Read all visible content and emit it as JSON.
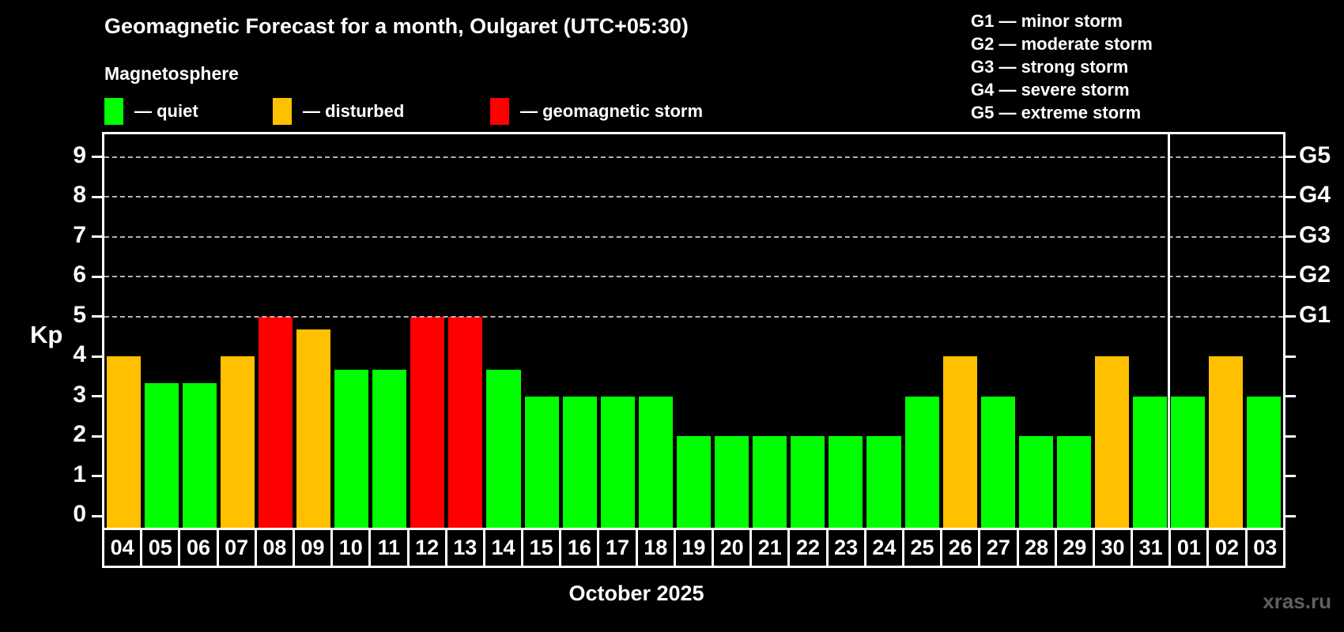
{
  "header": {
    "title": "Geomagnetic Forecast for a month, Oulgaret (UTC+05:30)",
    "subtitle": "Magnetosphere"
  },
  "legend": {
    "items": [
      {
        "key": "quiet",
        "label": "— quiet",
        "color": "#00ff00"
      },
      {
        "key": "disturbed",
        "label": "— disturbed",
        "color": "#ffc000"
      },
      {
        "key": "storm",
        "label": "— geomagnetic storm",
        "color": "#ff0000"
      }
    ]
  },
  "storm_scale_legend": {
    "items": [
      "G1 — minor storm",
      "G2 — moderate storm",
      "G3 — strong storm",
      "G4 — severe storm",
      "G5 — extreme storm"
    ]
  },
  "chart_data": {
    "type": "bar",
    "title": "Geomagnetic Forecast for a month, Oulgaret (UTC+05:30)",
    "xlabel": "October 2025",
    "ylabel": "Kp",
    "ylim": [
      -0.29,
      9.57
    ],
    "y_ticks": [
      0,
      1,
      2,
      3,
      4,
      5,
      6,
      7,
      8,
      9
    ],
    "grid": "dashed horizontal lines at Kp 5-9 only",
    "g_levels": [
      {
        "label": "G1",
        "kp": 5
      },
      {
        "label": "G2",
        "kp": 6
      },
      {
        "label": "G3",
        "kp": 7
      },
      {
        "label": "G4",
        "kp": 8
      },
      {
        "label": "G5",
        "kp": 9
      }
    ],
    "status_color_map": {
      "quiet": "#00ff00",
      "disturbed": "#ffc000",
      "storm": "#ff0000"
    },
    "month_boundary_after_index": 27,
    "days": [
      {
        "day": "04",
        "kp": 4.0,
        "status": "disturbed"
      },
      {
        "day": "05",
        "kp": 3.33,
        "status": "quiet"
      },
      {
        "day": "06",
        "kp": 3.33,
        "status": "quiet"
      },
      {
        "day": "07",
        "kp": 4.0,
        "status": "disturbed"
      },
      {
        "day": "08",
        "kp": 5.0,
        "status": "storm"
      },
      {
        "day": "09",
        "kp": 4.67,
        "status": "disturbed"
      },
      {
        "day": "10",
        "kp": 3.67,
        "status": "quiet"
      },
      {
        "day": "11",
        "kp": 3.67,
        "status": "quiet"
      },
      {
        "day": "12",
        "kp": 5.0,
        "status": "storm"
      },
      {
        "day": "13",
        "kp": 5.0,
        "status": "storm"
      },
      {
        "day": "14",
        "kp": 3.67,
        "status": "quiet"
      },
      {
        "day": "15",
        "kp": 3.0,
        "status": "quiet"
      },
      {
        "day": "16",
        "kp": 3.0,
        "status": "quiet"
      },
      {
        "day": "17",
        "kp": 3.0,
        "status": "quiet"
      },
      {
        "day": "18",
        "kp": 3.0,
        "status": "quiet"
      },
      {
        "day": "19",
        "kp": 2.0,
        "status": "quiet"
      },
      {
        "day": "20",
        "kp": 2.0,
        "status": "quiet"
      },
      {
        "day": "21",
        "kp": 2.0,
        "status": "quiet"
      },
      {
        "day": "22",
        "kp": 2.0,
        "status": "quiet"
      },
      {
        "day": "23",
        "kp": 2.0,
        "status": "quiet"
      },
      {
        "day": "24",
        "kp": 2.0,
        "status": "quiet"
      },
      {
        "day": "25",
        "kp": 3.0,
        "status": "quiet"
      },
      {
        "day": "26",
        "kp": 4.0,
        "status": "disturbed"
      },
      {
        "day": "27",
        "kp": 3.0,
        "status": "quiet"
      },
      {
        "day": "28",
        "kp": 2.0,
        "status": "quiet"
      },
      {
        "day": "29",
        "kp": 2.0,
        "status": "quiet"
      },
      {
        "day": "30",
        "kp": 4.0,
        "status": "disturbed"
      },
      {
        "day": "31",
        "kp": 3.0,
        "status": "quiet"
      },
      {
        "day": "01",
        "kp": 3.0,
        "status": "quiet"
      },
      {
        "day": "02",
        "kp": 4.0,
        "status": "disturbed"
      },
      {
        "day": "03",
        "kp": 3.0,
        "status": "quiet"
      }
    ]
  },
  "watermark": "xras.ru"
}
